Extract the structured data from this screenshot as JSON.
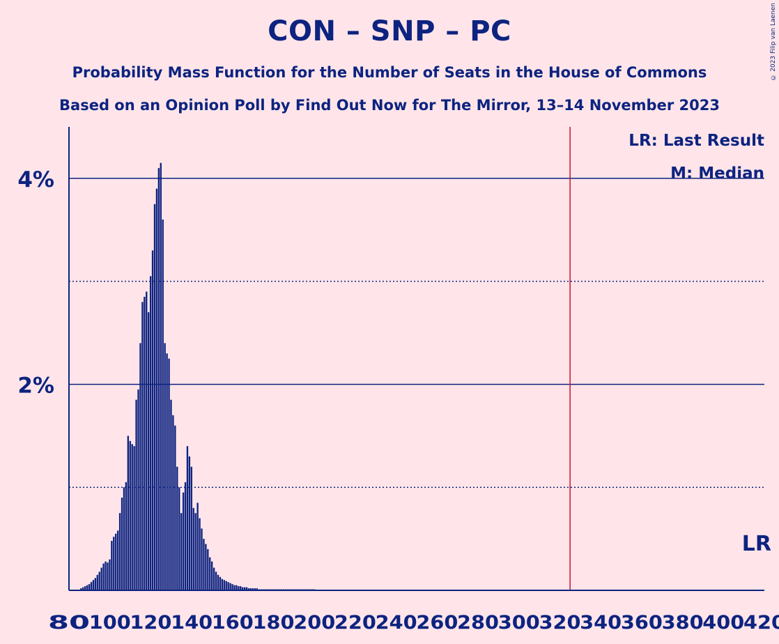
{
  "title": "CON – SNP – PC",
  "subtitle1": "Probability Mass Function for the Number of Seats in the House of Commons",
  "subtitle2": "Based on an Opinion Poll by Find Out Now for The Mirror, 13–14 November 2023",
  "copyright": "© 2023 Filip van Laenen",
  "colors": {
    "background": "#FFE5E9",
    "primary": "#0D2380",
    "last_result_line": "#C8102E"
  },
  "chart_data": {
    "type": "bar",
    "xlim": [
      80,
      420
    ],
    "ylim": [
      0,
      4.5
    ],
    "x_ticks": [
      80,
      100,
      120,
      140,
      160,
      180,
      200,
      220,
      240,
      260,
      280,
      300,
      320,
      340,
      360,
      380,
      400,
      420
    ],
    "x_tick_labels": [
      "80",
      "100",
      "120",
      "140",
      "160",
      "180",
      "200",
      "220",
      "240",
      "260",
      "280",
      "300",
      "320",
      "340",
      "360",
      "380",
      "400",
      "420"
    ],
    "y_major_ticks": [
      2,
      4
    ],
    "y_tick_labels": [
      "2%",
      "4%"
    ],
    "y_minor_gridlines": [
      1,
      3
    ],
    "last_result": 325,
    "last_result_label": "LR",
    "legend": [
      "LR: Last Result",
      "M: Median"
    ],
    "legend_position": "top-right",
    "x": [
      86,
      87,
      88,
      89,
      90,
      91,
      92,
      93,
      94,
      95,
      96,
      97,
      98,
      99,
      100,
      101,
      102,
      103,
      104,
      105,
      106,
      107,
      108,
      109,
      110,
      111,
      112,
      113,
      114,
      115,
      116,
      117,
      118,
      119,
      120,
      121,
      122,
      123,
      124,
      125,
      126,
      127,
      128,
      129,
      130,
      131,
      132,
      133,
      134,
      135,
      136,
      137,
      138,
      139,
      140,
      141,
      142,
      143,
      144,
      145,
      146,
      147,
      148,
      149,
      150,
      151,
      152,
      153,
      154,
      155,
      156,
      157,
      158,
      159,
      160,
      161,
      162,
      163,
      164,
      165,
      166,
      167,
      168,
      169,
      170,
      171,
      172,
      173,
      174,
      175,
      176,
      177,
      178,
      179,
      180,
      181,
      182,
      183,
      184,
      185,
      186,
      187,
      188,
      189,
      190,
      191,
      192,
      193,
      194,
      195,
      196,
      197,
      198,
      199,
      200
    ],
    "values": [
      0.02,
      0.03,
      0.04,
      0.05,
      0.06,
      0.08,
      0.1,
      0.12,
      0.15,
      0.18,
      0.22,
      0.26,
      0.28,
      0.27,
      0.3,
      0.48,
      0.52,
      0.55,
      0.58,
      0.75,
      0.9,
      1.0,
      1.05,
      1.5,
      1.45,
      1.42,
      1.4,
      1.85,
      1.95,
      2.4,
      2.8,
      2.85,
      2.9,
      2.7,
      3.05,
      3.3,
      3.75,
      3.9,
      4.1,
      4.15,
      3.6,
      2.4,
      2.3,
      2.25,
      1.85,
      1.7,
      1.6,
      1.2,
      1.0,
      0.75,
      0.95,
      1.05,
      1.4,
      1.3,
      1.2,
      0.8,
      0.75,
      0.85,
      0.7,
      0.6,
      0.5,
      0.45,
      0.4,
      0.32,
      0.28,
      0.22,
      0.18,
      0.15,
      0.13,
      0.11,
      0.1,
      0.09,
      0.08,
      0.07,
      0.06,
      0.05,
      0.05,
      0.04,
      0.04,
      0.03,
      0.03,
      0.03,
      0.02,
      0.02,
      0.02,
      0.02,
      0.02,
      0.01,
      0.01,
      0.01,
      0.01,
      0.01,
      0.01,
      0.01,
      0.01,
      0.01,
      0.01,
      0.01,
      0.01,
      0.01,
      0.01,
      0.01,
      0.01,
      0.01,
      0.01,
      0.01,
      0.01,
      0.01,
      0.01,
      0.01,
      0.01,
      0.01,
      0.01,
      0.01,
      0.01
    ]
  }
}
